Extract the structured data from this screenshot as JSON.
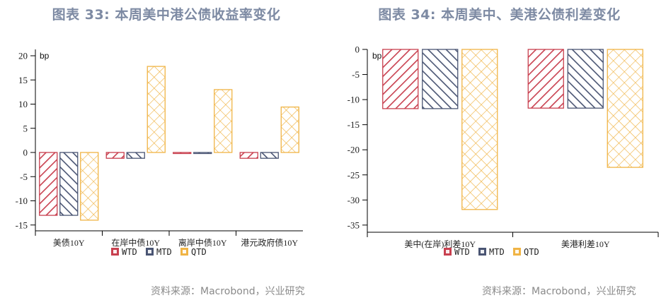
{
  "left": {
    "title": "图表 33: 本周美中港公债收益率变化",
    "source": "资料来源：Macrobond，兴业研究"
  },
  "right": {
    "title": "图表 34: 本周美中、美港公债利差变化",
    "source": "资料来源：Macrobond，兴业研究"
  },
  "colors": {
    "WTD": "#c8404f",
    "MTD": "#4a5573",
    "QTD": "#f0b445",
    "title": "#7d8aa3"
  },
  "chart_data": [
    {
      "type": "bar",
      "title": "图表 33: 本周美中港公债收益率变化",
      "ylabel": "bp",
      "xlabel": "",
      "ylim": [
        -16,
        21
      ],
      "yticks": [
        20,
        15,
        10,
        5,
        0,
        -5,
        -10,
        -15
      ],
      "grid": false,
      "legend_position": "bottom",
      "categories": [
        "美债10Y",
        "在岸中债10Y",
        "离岸中债10Y",
        "港元政府债10Y"
      ],
      "series": [
        {
          "name": "WTD",
          "values": [
            -13.0,
            -1.2,
            -0.2,
            -1.2
          ]
        },
        {
          "name": "MTD",
          "values": [
            -13.0,
            -1.2,
            -0.2,
            -1.2
          ]
        },
        {
          "name": "QTD",
          "values": [
            -14.0,
            17.8,
            13.0,
            9.4
          ]
        }
      ]
    },
    {
      "type": "bar",
      "title": "图表 34: 本周美中、美港公债利差变化",
      "ylabel": "bp",
      "xlabel": "",
      "ylim": [
        -36,
        0
      ],
      "yticks": [
        0,
        -5,
        -10,
        -15,
        -20,
        -25,
        -30,
        -35
      ],
      "grid": false,
      "legend_position": "bottom",
      "categories": [
        "美中(在岸)利差10Y",
        "美港利差10Y"
      ],
      "series": [
        {
          "name": "WTD",
          "values": [
            -11.8,
            -11.7
          ]
        },
        {
          "name": "MTD",
          "values": [
            -11.8,
            -11.7
          ]
        },
        {
          "name": "QTD",
          "values": [
            -31.9,
            -23.5
          ]
        }
      ]
    }
  ]
}
